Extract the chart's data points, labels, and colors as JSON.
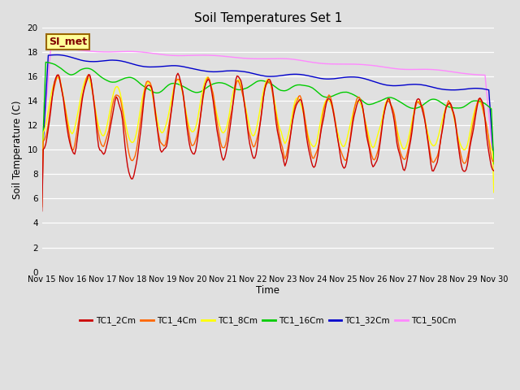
{
  "title": "Soil Temperatures Set 1",
  "xlabel": "Time",
  "ylabel": "Soil Temperature (C)",
  "ylim": [
    0,
    20
  ],
  "yticks": [
    0,
    2,
    4,
    6,
    8,
    10,
    12,
    14,
    16,
    18,
    20
  ],
  "x_labels": [
    "Nov 15",
    "Nov 16",
    "Nov 17",
    "Nov 18",
    "Nov 19",
    "Nov 20",
    "Nov 21",
    "Nov 22",
    "Nov 23",
    "Nov 24",
    "Nov 25",
    "Nov 26",
    "Nov 27",
    "Nov 28",
    "Nov 29",
    "Nov 30"
  ],
  "series_colors": [
    "#cc0000",
    "#ff6600",
    "#ffff00",
    "#00cc00",
    "#0000cc",
    "#ff88ff"
  ],
  "series_labels": [
    "TC1_2Cm",
    "TC1_4Cm",
    "TC1_8Cm",
    "TC1_16Cm",
    "TC1_32Cm",
    "TC1_50Cm"
  ],
  "bg_color": "#e0e0e0",
  "annotation_text": "SI_met",
  "annotation_bg": "#ffff99",
  "annotation_border": "#996600"
}
